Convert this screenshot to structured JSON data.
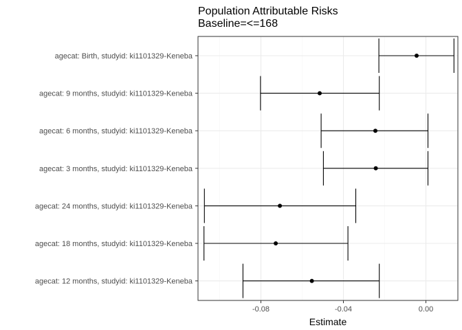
{
  "chart_data": {
    "type": "forest",
    "title": "Population Attributable Risks",
    "subtitle": "Baseline=<=168",
    "xlabel": "Estimate",
    "ylabel": "",
    "xlim": [
      -0.1105,
      0.0155
    ],
    "xticks": [
      -0.08,
      -0.04,
      0.0
    ],
    "xtick_labels": [
      "-0.08",
      "-0.04",
      "0.00"
    ],
    "grid": true,
    "legend": "none",
    "categories": [
      "agecat: Birth, studyid: ki1101329-Keneba",
      "agecat: 9 months, studyid: ki1101329-Keneba",
      "agecat: 6 months, studyid: ki1101329-Keneba",
      "agecat: 3 months, studyid: ki1101329-Keneba",
      "agecat: 24 months, studyid: ki1101329-Keneba",
      "agecat: 18 months, studyid: ki1101329-Keneba",
      "agecat: 12 months, studyid: ki1101329-Keneba"
    ],
    "estimate": [
      -0.0045,
      -0.0515,
      -0.0245,
      -0.0243,
      -0.0708,
      -0.0728,
      -0.0553
    ],
    "lower": [
      -0.0228,
      -0.0802,
      -0.0508,
      -0.0497,
      -0.1074,
      -0.1076,
      -0.0887
    ],
    "upper": [
      0.0136,
      -0.0226,
      0.001,
      0.001,
      -0.034,
      -0.0378,
      -0.0226
    ],
    "colors": {
      "panel_border": "#333333",
      "grid_major": "#ebebeb",
      "grid_minor": "#f5f5f5",
      "mark": "#000000",
      "label": "#4d4d4d"
    }
  }
}
